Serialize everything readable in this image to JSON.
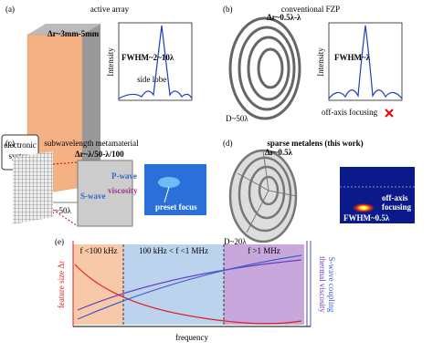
{
  "panel_a": {
    "label": "(a)",
    "title": "active array",
    "delta_r": "Δr~3mm-5mm",
    "system": [
      "electronic",
      "system"
    ],
    "size": "L~50λ",
    "fwhm": "FWHM~2~10λ",
    "side_lobe": "side lobe",
    "y_label": "Intensity"
  },
  "panel_b": {
    "label": "(b)",
    "title": "conventional FZP",
    "delta_r": "Δr~0.5λ-λ",
    "size": "D~50λ",
    "fwhm": "FWHM~λ",
    "y_label": "Intensity",
    "note": "off-axis focusing"
  },
  "panel_c": {
    "label": "(c)",
    "title": "subwavelength metamaterial",
    "delta_r": "Δr~λ/50-λ/100",
    "p_wave": "P-wave",
    "s_wave": "S-wave",
    "viscosity": "viscosity",
    "focus": "preset focus"
  },
  "panel_d": {
    "label": "(d)",
    "title": "sparse metalens (this work)",
    "delta_r": "Δr~0.5λ",
    "size": "D~20λ",
    "note": [
      "off-axis",
      "focusing"
    ],
    "fwhm": "FWHM~0.5λ"
  },
  "panel_e": {
    "label": "(e)",
    "regions": [
      "f <100 kHz",
      "100 kHz < f <1 MHz",
      "f >1 MHz"
    ],
    "y_label": "feature size Δr",
    "y2_labels": [
      "thermal viscosity",
      "S-wave coupling"
    ],
    "x_label": "frequency"
  }
}
